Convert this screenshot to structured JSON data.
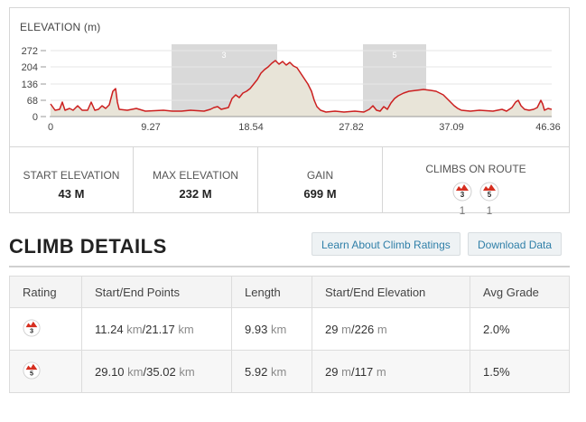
{
  "elevation": {
    "title": "ELEVATION (m)",
    "y_ticks": [
      "272",
      "204",
      "136",
      "68",
      "0"
    ],
    "x_ticks": [
      "0",
      "9.27",
      "18.54",
      "27.82",
      "37.09",
      "46.36"
    ],
    "climb_segments": [
      {
        "label": "3",
        "start_km": 11.24,
        "end_km": 21.17
      },
      {
        "label": "5",
        "start_km": 29.1,
        "end_km": 35.02
      }
    ],
    "colors": {
      "line": "#cc1f1f",
      "fill": "#e8e4d8",
      "band": "#d9d9d9"
    }
  },
  "stats": {
    "start_label": "START ELEVATION",
    "start_value": "43 M",
    "max_label": "MAX ELEVATION",
    "max_value": "232 M",
    "gain_label": "GAIN",
    "gain_value": "699 M",
    "climbs_label": "CLIMBS ON ROUTE",
    "climbs": [
      {
        "rating": "3",
        "count": "1"
      },
      {
        "rating": "5",
        "count": "1"
      }
    ]
  },
  "climb_details": {
    "heading": "CLIMB DETAILS",
    "learn_button": "Learn About Climb Ratings",
    "download_button": "Download Data",
    "headers": [
      "Rating",
      "Start/End Points",
      "Length",
      "Start/End Elevation",
      "Avg Grade"
    ],
    "rows": [
      {
        "rating": "3",
        "start": "11.24",
        "start_unit": "km",
        "end": "21.17",
        "end_unit": "km",
        "length": "9.93",
        "length_unit": "km",
        "elev_start": "29",
        "elev_start_unit": "m",
        "elev_end": "226",
        "elev_end_unit": "m",
        "grade": "2.0%"
      },
      {
        "rating": "5",
        "start": "29.10",
        "start_unit": "km",
        "end": "35.02",
        "end_unit": "km",
        "length": "5.92",
        "length_unit": "km",
        "elev_start": "29",
        "elev_start_unit": "m",
        "elev_end": "117",
        "elev_end_unit": "m",
        "grade": "1.5%"
      }
    ]
  }
}
